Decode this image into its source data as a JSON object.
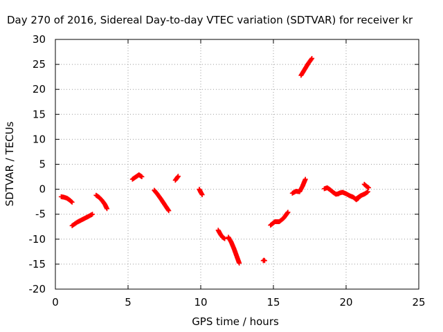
{
  "chart_data": {
    "type": "scatter",
    "title": "Day 270 of 2016, Sidereal Day-to-day VTEC variation (SDTVAR) for receiver kr",
    "xlabel": "GPS time / hours",
    "ylabel": "SDTVAR / TECUs",
    "xlim": [
      0,
      25
    ],
    "ylim": [
      -20,
      30
    ],
    "x_ticks": [
      "0",
      "5",
      "10",
      "15",
      "20",
      "25"
    ],
    "y_ticks": [
      "-20",
      "-15",
      "-10",
      "-5",
      "0",
      "5",
      "10",
      "15",
      "20",
      "25",
      "30"
    ],
    "grid": true,
    "marker": "+",
    "color": "#ff0000",
    "segments": [
      {
        "x": [
          0.4,
          0.6,
          0.8,
          1.0,
          1.15
        ],
        "y": [
          -1.5,
          -1.6,
          -1.8,
          -2.2,
          -2.6
        ]
      },
      {
        "x": [
          1.15,
          1.5,
          1.9,
          2.3,
          2.55
        ],
        "y": [
          -7.3,
          -6.6,
          -6.0,
          -5.4,
          -5.0
        ]
      },
      {
        "x": [
          2.8,
          3.0,
          3.2,
          3.4,
          3.55
        ],
        "y": [
          -1.2,
          -1.6,
          -2.2,
          -3.0,
          -3.9
        ]
      },
      {
        "x": [
          5.3,
          5.5,
          5.75,
          5.95
        ],
        "y": [
          2.0,
          2.4,
          2.9,
          2.5
        ]
      },
      {
        "x": [
          6.8,
          7.0,
          7.25,
          7.5,
          7.8
        ],
        "y": [
          -0.2,
          -0.9,
          -1.9,
          -3.0,
          -4.3
        ]
      },
      {
        "x": [
          8.25,
          8.35,
          8.45
        ],
        "y": [
          1.8,
          2.2,
          2.6
        ]
      },
      {
        "x": [
          9.9,
          10.0,
          10.1
        ],
        "y": [
          0.0,
          -0.6,
          -1.1
        ]
      },
      {
        "x": [
          11.2,
          11.35,
          11.5,
          11.65
        ],
        "y": [
          -8.2,
          -9.0,
          -9.6,
          -9.9
        ]
      },
      {
        "x": [
          11.9,
          12.1,
          12.3,
          12.5,
          12.65
        ],
        "y": [
          -9.6,
          -10.6,
          -12.0,
          -13.6,
          -14.8
        ]
      },
      {
        "x": [
          14.3,
          14.35,
          14.4
        ],
        "y": [
          -14.3,
          -14.2,
          -14.3
        ]
      },
      {
        "x": [
          14.8,
          15.1,
          15.4,
          15.7,
          16.0
        ],
        "y": [
          -7.2,
          -6.5,
          -6.5,
          -5.8,
          -4.6
        ]
      },
      {
        "x": [
          16.3,
          16.55,
          16.8,
          17.0,
          17.2
        ],
        "y": [
          -0.8,
          -0.4,
          -0.5,
          0.6,
          2.0
        ]
      },
      {
        "x": [
          16.9,
          17.15,
          17.4,
          17.65
        ],
        "y": [
          22.8,
          24.0,
          25.2,
          26.2
        ]
      },
      {
        "x": [
          18.5,
          18.7,
          18.9,
          19.1,
          19.3,
          19.5
        ],
        "y": [
          0.1,
          0.3,
          -0.1,
          -0.6,
          -1.0,
          -0.9
        ]
      },
      {
        "x": [
          19.5,
          19.75,
          20.0,
          20.25,
          20.5,
          20.7,
          20.85
        ],
        "y": [
          -0.8,
          -0.6,
          -0.9,
          -1.3,
          -1.6,
          -2.1,
          -1.8
        ]
      },
      {
        "x": [
          20.7,
          21.0,
          21.3,
          21.5
        ],
        "y": [
          -1.9,
          -1.3,
          -0.9,
          -0.5
        ]
      },
      {
        "x": [
          21.25,
          21.4,
          21.55
        ],
        "y": [
          1.0,
          0.6,
          0.3
        ]
      }
    ]
  }
}
